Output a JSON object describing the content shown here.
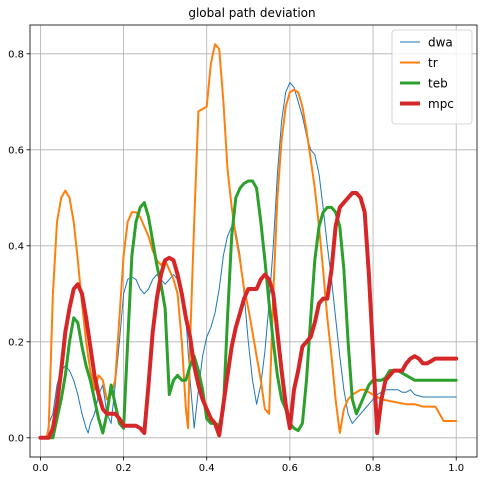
{
  "chart_data": {
    "type": "line",
    "title": "global path deviation",
    "xlabel": "",
    "ylabel": "",
    "xlim": [
      -0.025,
      1.05
    ],
    "ylim": [
      -0.04,
      0.86
    ],
    "xticks": [
      0.0,
      0.2,
      0.4,
      0.6,
      0.8,
      1.0
    ],
    "xtick_labels": [
      "0.0",
      "0.2",
      "0.4",
      "0.6",
      "0.8",
      "1.0"
    ],
    "yticks": [
      0.0,
      0.2,
      0.4,
      0.6,
      0.8
    ],
    "ytick_labels": [
      "0.0",
      "0.2",
      "0.4",
      "0.6",
      "0.8"
    ],
    "grid": true,
    "legend_position": "top-right",
    "series": [
      {
        "name": "dwa",
        "color": "#1f77b4",
        "linewidth": 1,
        "x": [
          0.0,
          0.015,
          0.02,
          0.03,
          0.04,
          0.05,
          0.06,
          0.07,
          0.08,
          0.09,
          0.1,
          0.11,
          0.115,
          0.12,
          0.13,
          0.14,
          0.15,
          0.16,
          0.17,
          0.18,
          0.19,
          0.2,
          0.21,
          0.22,
          0.23,
          0.24,
          0.25,
          0.26,
          0.27,
          0.28,
          0.29,
          0.3,
          0.31,
          0.32,
          0.33,
          0.34,
          0.35,
          0.36,
          0.37,
          0.38,
          0.39,
          0.4,
          0.41,
          0.42,
          0.43,
          0.44,
          0.45,
          0.46,
          0.47,
          0.48,
          0.49,
          0.5,
          0.51,
          0.52,
          0.53,
          0.54,
          0.55,
          0.56,
          0.57,
          0.58,
          0.59,
          0.6,
          0.61,
          0.62,
          0.63,
          0.64,
          0.65,
          0.66,
          0.67,
          0.68,
          0.69,
          0.7,
          0.71,
          0.72,
          0.73,
          0.74,
          0.75,
          0.76,
          0.77,
          0.78,
          0.79,
          0.8,
          0.81,
          0.82,
          0.83,
          0.84,
          0.85,
          0.86,
          0.87,
          0.88,
          0.89,
          0.9,
          0.92,
          0.95,
          0.98,
          1.0
        ],
        "y": [
          0.0,
          0.0,
          0.03,
          0.05,
          0.11,
          0.14,
          0.15,
          0.14,
          0.12,
          0.09,
          0.05,
          0.02,
          0.01,
          0.03,
          0.05,
          0.09,
          0.11,
          0.05,
          0.03,
          0.11,
          0.2,
          0.3,
          0.33,
          0.335,
          0.33,
          0.31,
          0.3,
          0.31,
          0.33,
          0.34,
          0.33,
          0.32,
          0.33,
          0.34,
          0.33,
          0.31,
          0.25,
          0.12,
          0.02,
          0.1,
          0.17,
          0.21,
          0.23,
          0.26,
          0.31,
          0.38,
          0.42,
          0.44,
          0.43,
          0.38,
          0.3,
          0.2,
          0.12,
          0.07,
          0.11,
          0.18,
          0.28,
          0.4,
          0.55,
          0.66,
          0.72,
          0.74,
          0.73,
          0.7,
          0.67,
          0.63,
          0.6,
          0.59,
          0.55,
          0.48,
          0.4,
          0.33,
          0.25,
          0.17,
          0.1,
          0.05,
          0.03,
          0.04,
          0.05,
          0.06,
          0.07,
          0.08,
          0.09,
          0.095,
          0.1,
          0.1,
          0.1,
          0.1,
          0.095,
          0.095,
          0.1,
          0.09,
          0.085,
          0.085,
          0.085,
          0.085
        ]
      },
      {
        "name": "tr",
        "color": "#ff7f0e",
        "linewidth": 2,
        "x": [
          0.0,
          0.015,
          0.02,
          0.03,
          0.04,
          0.05,
          0.06,
          0.07,
          0.08,
          0.09,
          0.1,
          0.11,
          0.12,
          0.13,
          0.14,
          0.15,
          0.16,
          0.17,
          0.18,
          0.19,
          0.2,
          0.21,
          0.22,
          0.23,
          0.24,
          0.25,
          0.26,
          0.27,
          0.28,
          0.29,
          0.3,
          0.31,
          0.32,
          0.33,
          0.34,
          0.35,
          0.355,
          0.36,
          0.37,
          0.38,
          0.39,
          0.4,
          0.41,
          0.42,
          0.43,
          0.44,
          0.45,
          0.46,
          0.47,
          0.48,
          0.49,
          0.5,
          0.51,
          0.52,
          0.53,
          0.54,
          0.55,
          0.56,
          0.57,
          0.58,
          0.59,
          0.6,
          0.61,
          0.62,
          0.63,
          0.64,
          0.65,
          0.66,
          0.67,
          0.68,
          0.69,
          0.7,
          0.71,
          0.72,
          0.73,
          0.74,
          0.75,
          0.76,
          0.77,
          0.78,
          0.79,
          0.8,
          0.82,
          0.85,
          0.88,
          0.9,
          0.92,
          0.95,
          0.97,
          1.0
        ],
        "y": [
          0.0,
          0.0,
          0.02,
          0.3,
          0.45,
          0.5,
          0.515,
          0.5,
          0.45,
          0.37,
          0.28,
          0.2,
          0.14,
          0.1,
          0.13,
          0.12,
          0.08,
          0.09,
          0.12,
          0.25,
          0.38,
          0.45,
          0.47,
          0.47,
          0.46,
          0.44,
          0.42,
          0.39,
          0.37,
          0.36,
          0.37,
          0.35,
          0.33,
          0.3,
          0.2,
          0.06,
          0.02,
          0.2,
          0.45,
          0.68,
          0.685,
          0.69,
          0.78,
          0.82,
          0.81,
          0.7,
          0.56,
          0.48,
          0.42,
          0.37,
          0.31,
          0.27,
          0.22,
          0.17,
          0.12,
          0.06,
          0.05,
          0.3,
          0.5,
          0.62,
          0.69,
          0.72,
          0.725,
          0.72,
          0.69,
          0.64,
          0.58,
          0.52,
          0.44,
          0.35,
          0.25,
          0.17,
          0.08,
          0.01,
          0.06,
          0.08,
          0.09,
          0.095,
          0.1,
          0.1,
          0.095,
          0.09,
          0.08,
          0.075,
          0.07,
          0.07,
          0.065,
          0.065,
          0.035,
          0.035
        ]
      },
      {
        "name": "teb",
        "color": "#2ca02c",
        "linewidth": 3,
        "x": [
          0.0,
          0.03,
          0.04,
          0.05,
          0.06,
          0.07,
          0.08,
          0.09,
          0.1,
          0.11,
          0.12,
          0.13,
          0.14,
          0.15,
          0.16,
          0.17,
          0.18,
          0.19,
          0.2,
          0.21,
          0.22,
          0.23,
          0.24,
          0.25,
          0.26,
          0.27,
          0.28,
          0.29,
          0.3,
          0.31,
          0.32,
          0.33,
          0.34,
          0.35,
          0.36,
          0.37,
          0.38,
          0.39,
          0.4,
          0.41,
          0.42,
          0.43,
          0.44,
          0.45,
          0.46,
          0.47,
          0.48,
          0.49,
          0.5,
          0.51,
          0.52,
          0.53,
          0.54,
          0.55,
          0.56,
          0.57,
          0.58,
          0.59,
          0.6,
          0.61,
          0.62,
          0.63,
          0.64,
          0.65,
          0.66,
          0.67,
          0.68,
          0.69,
          0.7,
          0.71,
          0.72,
          0.73,
          0.74,
          0.75,
          0.76,
          0.77,
          0.78,
          0.79,
          0.8,
          0.81,
          0.82,
          0.83,
          0.84,
          0.86,
          0.88,
          0.9,
          0.93,
          0.96,
          1.0
        ],
        "y": [
          0.0,
          0.0,
          0.04,
          0.08,
          0.13,
          0.2,
          0.25,
          0.24,
          0.19,
          0.15,
          0.12,
          0.08,
          0.04,
          0.01,
          0.05,
          0.11,
          0.07,
          0.03,
          0.02,
          0.2,
          0.38,
          0.45,
          0.48,
          0.49,
          0.46,
          0.41,
          0.36,
          0.32,
          0.27,
          0.09,
          0.12,
          0.13,
          0.12,
          0.12,
          0.15,
          0.17,
          0.14,
          0.1,
          0.04,
          0.03,
          0.03,
          0.025,
          0.06,
          0.25,
          0.42,
          0.5,
          0.52,
          0.53,
          0.535,
          0.535,
          0.52,
          0.45,
          0.37,
          0.28,
          0.2,
          0.13,
          0.08,
          0.06,
          0.03,
          0.02,
          0.015,
          0.03,
          0.12,
          0.25,
          0.37,
          0.44,
          0.47,
          0.48,
          0.48,
          0.47,
          0.44,
          0.35,
          0.2,
          0.08,
          0.05,
          0.07,
          0.09,
          0.11,
          0.12,
          0.12,
          0.12,
          0.125,
          0.14,
          0.14,
          0.13,
          0.12,
          0.12,
          0.12,
          0.12
        ]
      },
      {
        "name": "mpc",
        "color": "#d62728",
        "linewidth": 4,
        "x": [
          0.0,
          0.02,
          0.03,
          0.04,
          0.05,
          0.06,
          0.07,
          0.08,
          0.09,
          0.1,
          0.11,
          0.12,
          0.13,
          0.14,
          0.15,
          0.16,
          0.17,
          0.18,
          0.19,
          0.2,
          0.21,
          0.22,
          0.23,
          0.24,
          0.25,
          0.26,
          0.27,
          0.28,
          0.29,
          0.3,
          0.31,
          0.32,
          0.33,
          0.34,
          0.35,
          0.36,
          0.37,
          0.38,
          0.39,
          0.4,
          0.41,
          0.42,
          0.43,
          0.44,
          0.45,
          0.46,
          0.47,
          0.48,
          0.49,
          0.5,
          0.51,
          0.52,
          0.53,
          0.54,
          0.55,
          0.56,
          0.57,
          0.58,
          0.59,
          0.6,
          0.61,
          0.62,
          0.63,
          0.64,
          0.65,
          0.66,
          0.67,
          0.68,
          0.69,
          0.7,
          0.71,
          0.72,
          0.73,
          0.74,
          0.75,
          0.76,
          0.77,
          0.78,
          0.79,
          0.8,
          0.81,
          0.82,
          0.83,
          0.84,
          0.85,
          0.86,
          0.87,
          0.88,
          0.89,
          0.9,
          0.91,
          0.92,
          0.93,
          0.95,
          0.98,
          1.0
        ],
        "y": [
          0.0,
          0.0,
          0.02,
          0.07,
          0.14,
          0.22,
          0.27,
          0.31,
          0.32,
          0.3,
          0.25,
          0.19,
          0.13,
          0.09,
          0.06,
          0.05,
          0.05,
          0.05,
          0.04,
          0.025,
          0.025,
          0.025,
          0.025,
          0.02,
          0.01,
          0.11,
          0.22,
          0.29,
          0.34,
          0.37,
          0.375,
          0.37,
          0.34,
          0.3,
          0.25,
          0.21,
          0.15,
          0.11,
          0.08,
          0.06,
          0.04,
          0.03,
          0.005,
          0.07,
          0.13,
          0.19,
          0.23,
          0.26,
          0.29,
          0.31,
          0.31,
          0.31,
          0.33,
          0.34,
          0.33,
          0.3,
          0.22,
          0.14,
          0.07,
          0.02,
          0.1,
          0.14,
          0.19,
          0.2,
          0.21,
          0.24,
          0.28,
          0.29,
          0.29,
          0.35,
          0.44,
          0.48,
          0.49,
          0.5,
          0.51,
          0.51,
          0.5,
          0.47,
          0.34,
          0.18,
          0.01,
          0.08,
          0.12,
          0.13,
          0.14,
          0.14,
          0.14,
          0.155,
          0.165,
          0.17,
          0.165,
          0.155,
          0.155,
          0.165,
          0.165,
          0.165
        ]
      }
    ]
  }
}
